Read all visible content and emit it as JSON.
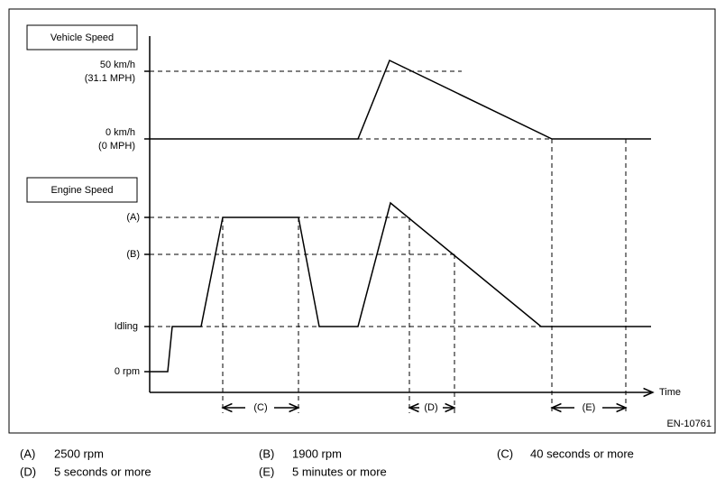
{
  "vehicle_speed": {
    "label": "Vehicle Speed",
    "ticks": [
      {
        "line1": "50 km/h",
        "line2": "(31.1 MPH)"
      },
      {
        "line1": "0 km/h",
        "line2": "(0 MPH)"
      }
    ]
  },
  "engine_speed": {
    "label": "Engine Speed",
    "ticks": [
      "(A)",
      "(B)",
      "Idling",
      "0 rpm"
    ]
  },
  "x_axis_label": "Time",
  "intervals": [
    "(C)",
    "(D)",
    "(E)"
  ],
  "figure_id": "EN-10761",
  "legend": [
    {
      "key": "(A)",
      "text": "2500 rpm"
    },
    {
      "key": "(B)",
      "text": "1900 rpm"
    },
    {
      "key": "(C)",
      "text": "40 seconds or more"
    },
    {
      "key": "(D)",
      "text": "5 seconds or more"
    },
    {
      "key": "(E)",
      "text": "5 minutes or more"
    }
  ]
}
